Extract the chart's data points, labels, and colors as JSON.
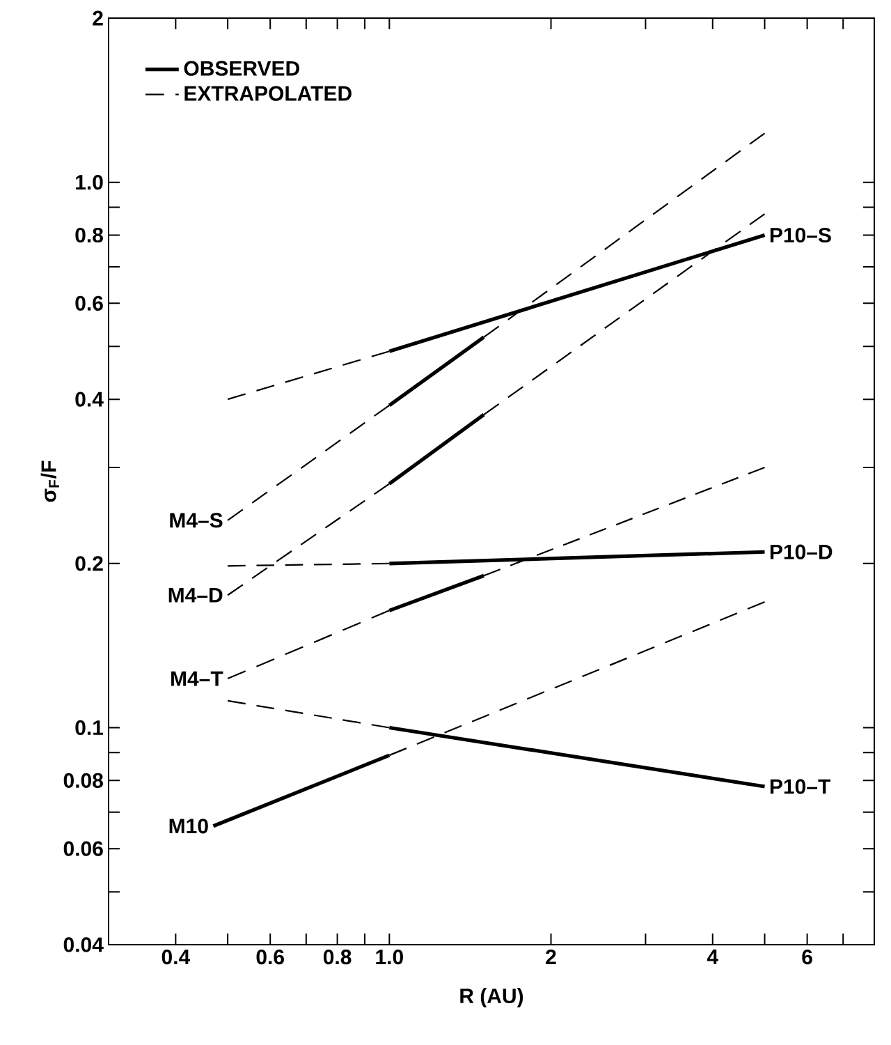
{
  "chart_data": {
    "type": "line",
    "xlabel": "R (AU)",
    "ylabel": "σ$_{F}$/F",
    "log": "xy",
    "legend": "top left",
    "xlim": [
      0.3,
      8
    ],
    "ylim": [
      0.04,
      2
    ],
    "xticks": [
      0.4,
      {
        "value": 0.5,
        "label": null
      },
      0.6,
      {
        "value": 0.7,
        "label": null
      },
      0.8,
      {
        "value": 0.9,
        "label": null
      },
      {
        "value": 1,
        "label": "1.0"
      },
      2,
      {
        "value": 3,
        "label": null
      },
      4,
      {
        "value": 5,
        "label": null
      },
      6,
      {
        "value": 7,
        "label": null
      }
    ],
    "yticks": [
      0.04,
      {
        "value": 0.05,
        "label": null
      },
      0.06,
      {
        "value": 0.07,
        "label": null
      },
      0.08,
      {
        "value": 0.09,
        "label": null
      },
      0.1,
      0.2,
      {
        "value": 0.3,
        "label": null
      },
      0.4,
      {
        "value": 0.5,
        "label": null
      },
      0.6,
      {
        "value": 0.7,
        "label": null
      },
      0.8,
      {
        "value": 0.9,
        "label": null
      },
      {
        "value": 1,
        "label": "1.0"
      },
      2
    ],
    "series": [
      {
        "name": "OBSERVED",
        "color": "#000000",
        "line_style": "solid",
        "x": [
          1,
          5
        ],
        "values": [
          0.49,
          0.8
        ]
      },
      {
        "name": "EXTRAPOLATED",
        "color": "#000000",
        "line_style": "dashed",
        "x": [
          0.5,
          1
        ],
        "values": [
          0.4,
          0.49
        ]
      },
      {
        "color": "#000000",
        "line_style": "dashed",
        "x": [
          0.5,
          1
        ],
        "values": [
          0.24,
          0.39
        ]
      },
      {
        "color": "#000000",
        "line_style": "solid",
        "x": [
          1,
          1.5
        ],
        "values": [
          0.39,
          0.52
        ]
      },
      {
        "color": "#000000",
        "line_style": "dashed",
        "x": [
          1.5,
          5
        ],
        "values": [
          0.52,
          1.23
        ]
      },
      {
        "color": "#000000",
        "line_style": "dashed",
        "x": [
          0.5,
          1
        ],
        "values": [
          0.175,
          0.28
        ]
      },
      {
        "color": "#000000",
        "line_style": "solid",
        "x": [
          1,
          1.5
        ],
        "values": [
          0.28,
          0.375
        ]
      },
      {
        "color": "#000000",
        "line_style": "dashed",
        "x": [
          1.5,
          5
        ],
        "values": [
          0.375,
          0.875
        ]
      },
      {
        "color": "#000000",
        "line_style": "dashed",
        "x": [
          0.5,
          1
        ],
        "values": [
          0.198,
          0.2
        ]
      },
      {
        "color": "#000000",
        "line_style": "solid",
        "x": [
          1,
          5
        ],
        "values": [
          0.2,
          0.21
        ]
      },
      {
        "color": "#000000",
        "line_style": "dashed",
        "x": [
          0.5,
          1
        ],
        "values": [
          0.123,
          0.164
        ]
      },
      {
        "color": "#000000",
        "line_style": "solid",
        "x": [
          1,
          1.5
        ],
        "values": [
          0.164,
          0.19
        ]
      },
      {
        "color": "#000000",
        "line_style": "dashed",
        "x": [
          1.5,
          5
        ],
        "values": [
          0.19,
          0.3
        ]
      },
      {
        "color": "#000000",
        "line_style": "solid",
        "x": [
          0.47,
          1
        ],
        "values": [
          0.066,
          0.089
        ]
      },
      {
        "color": "#000000",
        "line_style": "dashed",
        "x": [
          1,
          5
        ],
        "values": [
          0.089,
          0.17
        ]
      },
      {
        "color": "#000000",
        "line_style": "dashed",
        "x": [
          0.5,
          1
        ],
        "values": [
          0.112,
          0.1
        ]
      },
      {
        "color": "#000000",
        "line_style": "solid",
        "x": [
          1,
          5
        ],
        "values": [
          0.1,
          0.078
        ]
      }
    ],
    "annotations": [
      {
        "text": "M4–S",
        "x": 0.5,
        "y": 0.24
      },
      {
        "text": "M4–D",
        "x": 0.5,
        "y": 0.175
      },
      {
        "text": "M4–T",
        "x": 0.5,
        "y": 0.123
      },
      {
        "text": "M10",
        "x": 0.47,
        "y": 0.066
      },
      {
        "text": "P10–S",
        "x": 5,
        "y": 0.8
      },
      {
        "text": "P10–D",
        "x": 5,
        "y": 0.21
      },
      {
        "text": "P10–T",
        "x": 5,
        "y": 0.078
      }
    ]
  }
}
